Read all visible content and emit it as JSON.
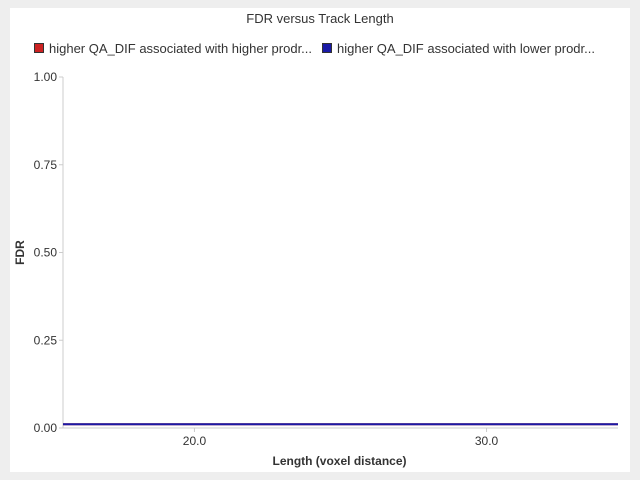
{
  "chart_data": {
    "type": "line",
    "title": "FDR versus Track Length",
    "xlabel": "Length (voxel distance)",
    "ylabel": "FDR",
    "xlim": [
      15.5,
      34.5
    ],
    "ylim": [
      0,
      1
    ],
    "x_ticks": [
      "20.0",
      "30.0"
    ],
    "x_tick_values": [
      20,
      30
    ],
    "y_ticks": [
      "0.00",
      "0.25",
      "0.50",
      "0.75",
      "1.00"
    ],
    "y_tick_values": [
      0,
      0.25,
      0.5,
      0.75,
      1.0
    ],
    "legend_position": "top",
    "grid": false,
    "series": [
      {
        "name": "higher QA_DIF associated with higher prodr...",
        "color": "#cc2222",
        "x": [
          15.5,
          34.5
        ],
        "y": [
          0.008,
          0.008
        ]
      },
      {
        "name": "higher QA_DIF associated with lower prodr...",
        "color": "#1a1aa6",
        "x": [
          15.5,
          34.5
        ],
        "y": [
          0.008,
          0.008
        ]
      }
    ]
  }
}
